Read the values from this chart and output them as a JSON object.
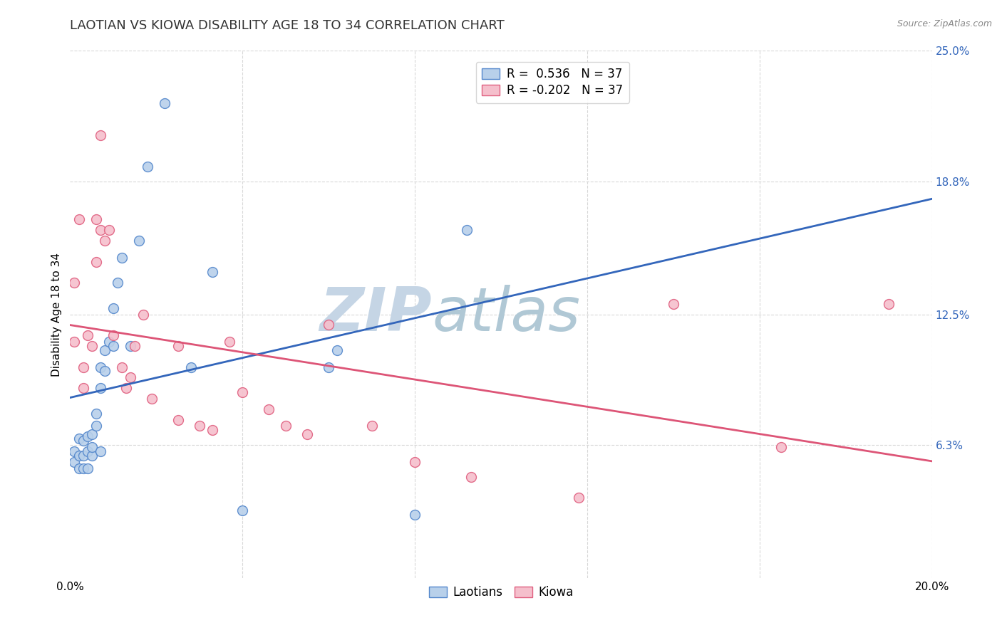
{
  "title": "LAOTIAN VS KIOWA DISABILITY AGE 18 TO 34 CORRELATION CHART",
  "source": "Source: ZipAtlas.com",
  "ylabel": "Disability Age 18 to 34",
  "xlim": [
    0.0,
    0.2
  ],
  "ylim": [
    0.0,
    0.25
  ],
  "x_ticks": [
    0.0,
    0.04,
    0.08,
    0.12,
    0.16,
    0.2
  ],
  "x_tick_labels": [
    "0.0%",
    "",
    "",
    "",
    "",
    "20.0%"
  ],
  "y_tick_labels_right": [
    "6.3%",
    "12.5%",
    "18.8%",
    "25.0%"
  ],
  "y_ticks_right": [
    0.063,
    0.125,
    0.188,
    0.25
  ],
  "legend_r1": "R =  0.536   N = 37",
  "legend_r2": "R = -0.202   N = 37",
  "laotian_color": "#b8d0ea",
  "laotian_edge_color": "#5588cc",
  "kiowa_color": "#f5bfcc",
  "kiowa_edge_color": "#e06080",
  "laotian_line_color": "#3366bb",
  "kiowa_line_color": "#dd5577",
  "watermark_zip_color": "#c0cfe0",
  "watermark_atlas_color": "#b8ccd8",
  "background_color": "#ffffff",
  "grid_color": "#d8d8d8",
  "laotian_x": [
    0.001,
    0.001,
    0.002,
    0.002,
    0.002,
    0.003,
    0.003,
    0.003,
    0.004,
    0.004,
    0.004,
    0.005,
    0.005,
    0.005,
    0.006,
    0.006,
    0.007,
    0.007,
    0.007,
    0.008,
    0.008,
    0.009,
    0.01,
    0.01,
    0.011,
    0.012,
    0.014,
    0.016,
    0.018,
    0.022,
    0.028,
    0.033,
    0.04,
    0.06,
    0.062,
    0.08,
    0.092
  ],
  "laotian_y": [
    0.055,
    0.06,
    0.052,
    0.058,
    0.066,
    0.052,
    0.058,
    0.065,
    0.052,
    0.06,
    0.067,
    0.058,
    0.062,
    0.068,
    0.072,
    0.078,
    0.06,
    0.09,
    0.1,
    0.098,
    0.108,
    0.112,
    0.11,
    0.128,
    0.14,
    0.152,
    0.11,
    0.16,
    0.195,
    0.225,
    0.1,
    0.145,
    0.032,
    0.1,
    0.108,
    0.03,
    0.165
  ],
  "kiowa_x": [
    0.001,
    0.001,
    0.002,
    0.003,
    0.003,
    0.004,
    0.005,
    0.006,
    0.006,
    0.007,
    0.007,
    0.008,
    0.009,
    0.01,
    0.012,
    0.013,
    0.014,
    0.015,
    0.017,
    0.019,
    0.025,
    0.025,
    0.03,
    0.033,
    0.037,
    0.04,
    0.046,
    0.05,
    0.055,
    0.06,
    0.07,
    0.08,
    0.093,
    0.118,
    0.14,
    0.165,
    0.19
  ],
  "kiowa_y": [
    0.112,
    0.14,
    0.17,
    0.09,
    0.1,
    0.115,
    0.11,
    0.15,
    0.17,
    0.165,
    0.21,
    0.16,
    0.165,
    0.115,
    0.1,
    0.09,
    0.095,
    0.11,
    0.125,
    0.085,
    0.11,
    0.075,
    0.072,
    0.07,
    0.112,
    0.088,
    0.08,
    0.072,
    0.068,
    0.12,
    0.072,
    0.055,
    0.048,
    0.038,
    0.13,
    0.062,
    0.13
  ],
  "marker_size": 100,
  "title_fontsize": 13,
  "axis_fontsize": 11,
  "legend_fontsize": 12
}
